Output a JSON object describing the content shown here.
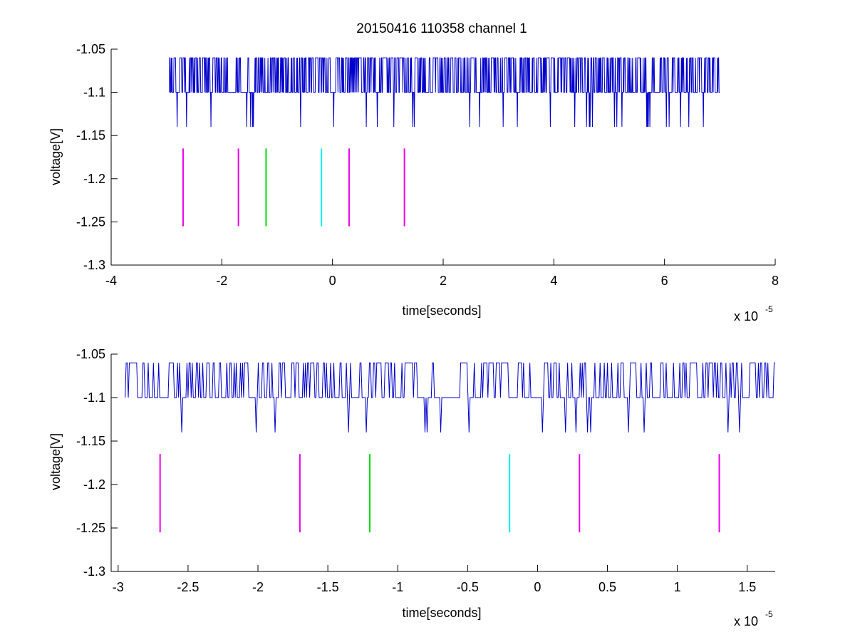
{
  "title": "20150416 110358 channel 1",
  "colors": {
    "signal": "#0000cc",
    "marker_magenta": "#ee00ee",
    "marker_green": "#00dd00",
    "marker_cyan": "#00eeee",
    "axis": "#000000"
  },
  "chart_data": [
    {
      "type": "line",
      "xlabel": "time[seconds]",
      "ylabel": "voltage[V]",
      "x_exponent_label": "x 10",
      "x_exponent": "-5",
      "xlim": [
        -4,
        8
      ],
      "ylim": [
        -1.3,
        -1.05
      ],
      "xticks": [
        -4,
        -2,
        0,
        2,
        4,
        6,
        8
      ],
      "xtick_labels": [
        "-4",
        "-2",
        "0",
        "2",
        "4",
        "6",
        "8"
      ],
      "yticks": [
        -1.3,
        -1.25,
        -1.2,
        -1.15,
        -1.1,
        -1.05
      ],
      "ytick_labels": [
        "-1.3",
        "-1.25",
        "-1.2",
        "-1.15",
        "-1.1",
        "-1.05"
      ],
      "grid": false,
      "series": [
        {
          "values_note": "",
          "x_range": [
            -2.95,
            7.0
          ],
          "levels": [
            -1.14,
            -1.1,
            -1.06
          ],
          "baseline": -1.1
        }
      ],
      "markers": [
        {
          "x": -2.7,
          "color": "magenta",
          "y_range": [
            -1.255,
            -1.165
          ]
        },
        {
          "x": -1.7,
          "color": "magenta",
          "y_range": [
            -1.255,
            -1.165
          ]
        },
        {
          "x": -1.2,
          "color": "green",
          "y_range": [
            -1.255,
            -1.165
          ]
        },
        {
          "x": -0.2,
          "color": "cyan",
          "y_range": [
            -1.255,
            -1.165
          ]
        },
        {
          "x": 0.3,
          "color": "magenta",
          "y_range": [
            -1.255,
            -1.165
          ]
        },
        {
          "x": 1.3,
          "color": "magenta",
          "y_range": [
            -1.255,
            -1.165
          ]
        }
      ]
    },
    {
      "type": "line",
      "xlabel": "time[seconds]",
      "ylabel": "voltage[V]",
      "x_exponent_label": "x 10",
      "x_exponent": "-5",
      "xlim": [
        -3.05,
        1.7
      ],
      "ylim": [
        -1.3,
        -1.05
      ],
      "xticks": [
        -3,
        -2.5,
        -2,
        -1.5,
        -1,
        -0.5,
        0,
        0.5,
        1,
        1.5
      ],
      "xtick_labels": [
        "-3",
        "-2.5",
        "-2",
        "-1.5",
        "-1",
        "-0.5",
        "0",
        "0.5",
        "1",
        "1.5"
      ],
      "yticks": [
        -1.3,
        -1.25,
        -1.2,
        -1.15,
        -1.1,
        -1.05
      ],
      "ytick_labels": [
        "-1.3",
        "-1.25",
        "-1.2",
        "-1.15",
        "-1.1",
        "-1.05"
      ],
      "grid": false,
      "series": [
        {
          "values_note": "",
          "x_range": [
            -2.95,
            1.7
          ],
          "levels": [
            -1.14,
            -1.1,
            -1.06
          ],
          "baseline": -1.1
        }
      ],
      "markers": [
        {
          "x": -2.7,
          "color": "magenta",
          "y_range": [
            -1.255,
            -1.165
          ]
        },
        {
          "x": -1.7,
          "color": "magenta",
          "y_range": [
            -1.255,
            -1.165
          ]
        },
        {
          "x": -1.2,
          "color": "green",
          "y_range": [
            -1.255,
            -1.165
          ]
        },
        {
          "x": -0.2,
          "color": "cyan",
          "y_range": [
            -1.255,
            -1.165
          ]
        },
        {
          "x": 0.3,
          "color": "magenta",
          "y_range": [
            -1.255,
            -1.165
          ]
        },
        {
          "x": 1.3,
          "color": "magenta",
          "y_range": [
            -1.255,
            -1.165
          ]
        }
      ]
    }
  ]
}
